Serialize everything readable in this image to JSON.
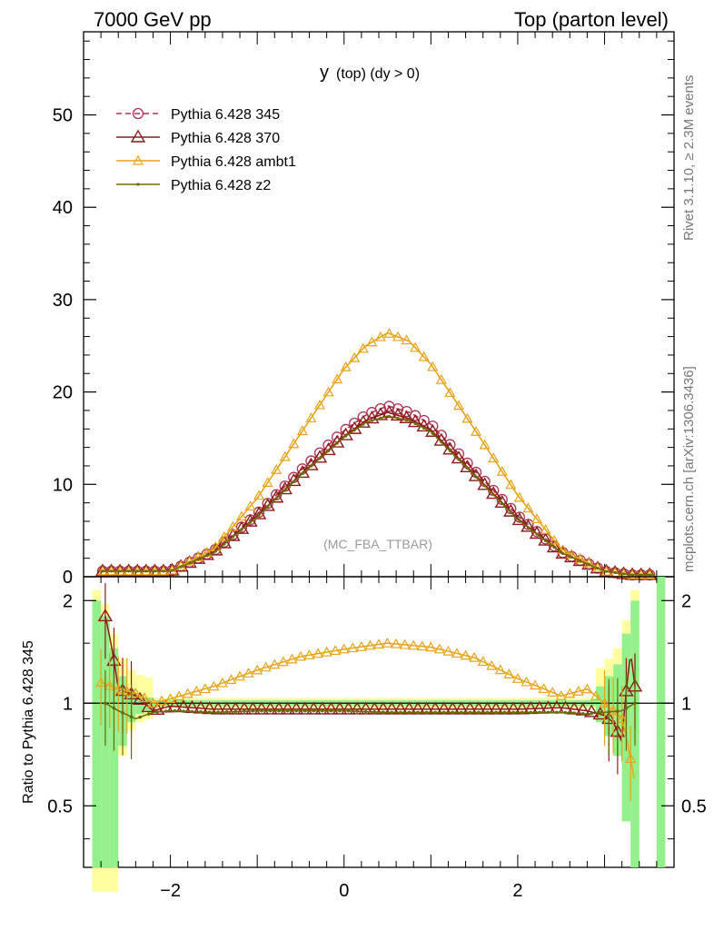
{
  "header": {
    "left": "7000 GeV pp",
    "right": "Top (parton level)"
  },
  "side_labels": {
    "rivet": "Rivet 3.1.10, ≥ 2.3M events",
    "mcplots": "mcplots.cern.ch [arXiv:1306.3436]"
  },
  "chart_data": [
    {
      "type": "line",
      "title_main": "y",
      "title_sub": "(top) (dy > 0)",
      "annotation": "(MC_FBA_TTBAR)",
      "xlim": [
        -3.0,
        3.8
      ],
      "ylim": [
        0,
        59
      ],
      "y_ticks": [
        0,
        10,
        20,
        30,
        40,
        50
      ],
      "x_ticks": [
        -2,
        0,
        2
      ],
      "legend_position": "top-left",
      "series": [
        {
          "name": "Pythia 6.428 345",
          "color": "#b03050",
          "dash": true,
          "marker": "circle",
          "x": [
            -2.0,
            -1.5,
            -1.0,
            -0.5,
            0.0,
            0.25,
            0.5,
            0.75,
            1.0,
            1.5,
            2.0,
            2.5,
            3.0,
            3.3
          ],
          "y": [
            0.6,
            2.8,
            6.8,
            11.5,
            15.8,
            17.5,
            18.5,
            17.8,
            16.5,
            11.5,
            6.6,
            2.7,
            0.6,
            0.2
          ]
        },
        {
          "name": "Pythia 6.428 370",
          "color": "#8b1a1a",
          "dash": false,
          "marker": "triangle-large",
          "x": [
            -2.0,
            -1.5,
            -1.0,
            -0.5,
            0.0,
            0.25,
            0.5,
            0.75,
            1.0,
            1.5,
            2.0,
            2.5,
            3.0,
            3.3
          ],
          "y": [
            0.6,
            2.7,
            6.6,
            11.1,
            15.2,
            16.9,
            17.8,
            17.1,
            15.9,
            11.1,
            6.3,
            2.6,
            0.6,
            0.2
          ]
        },
        {
          "name": "Pythia 6.428 ambt1",
          "color": "#e8a317",
          "dash": false,
          "marker": "triangle",
          "x": [
            -2.0,
            -1.5,
            -1.0,
            -0.5,
            0.0,
            0.25,
            0.5,
            0.75,
            1.0,
            1.5,
            2.0,
            2.5,
            3.0,
            3.3
          ],
          "y": [
            0.6,
            3.0,
            8.5,
            15.5,
            22.5,
            25.0,
            26.4,
            25.5,
            23.0,
            16.0,
            8.8,
            3.0,
            0.6,
            0.2
          ]
        },
        {
          "name": "Pythia 6.428 z2",
          "color": "#6b6b00",
          "dash": false,
          "marker": "dot",
          "x": [
            -2.0,
            -1.5,
            -1.0,
            -0.5,
            0.0,
            0.25,
            0.5,
            0.75,
            1.0,
            1.5,
            2.0,
            2.5,
            3.0,
            3.3
          ],
          "y": [
            0.6,
            2.6,
            6.5,
            11.0,
            15.1,
            16.7,
            17.4,
            16.9,
            15.7,
            11.0,
            6.2,
            2.6,
            0.6,
            0.2
          ]
        }
      ]
    },
    {
      "type": "line",
      "ylabel": "Ratio to Pythia 6.428 345",
      "xlim": [
        -3.0,
        3.8
      ],
      "ylim": [
        0.33,
        2.35
      ],
      "log_y": true,
      "y_ticks": [
        0.5,
        1,
        2
      ],
      "x_ticks": [
        -2,
        0,
        2
      ],
      "series": [
        {
          "name": "Pythia 6.428 370",
          "color": "#8b1a1a",
          "x": [
            -2.75,
            -2.6,
            -2.4,
            -2.2,
            -2.0,
            -1.5,
            -1.0,
            -0.5,
            0.0,
            0.5,
            1.0,
            1.5,
            2.0,
            2.5,
            2.8,
            3.0,
            3.1,
            3.2,
            3.3,
            3.35
          ],
          "y": [
            1.8,
            1.1,
            1.05,
            0.95,
            0.98,
            0.96,
            0.96,
            0.96,
            0.96,
            0.96,
            0.96,
            0.96,
            0.96,
            0.97,
            0.95,
            0.92,
            0.88,
            0.77,
            1.4,
            1.12
          ]
        },
        {
          "name": "Pythia 6.428 ambt1",
          "color": "#e8a317",
          "x": [
            -2.8,
            -2.6,
            -2.4,
            -2.2,
            -2.0,
            -1.5,
            -1.0,
            -0.5,
            0.0,
            0.5,
            1.0,
            1.5,
            2.0,
            2.5,
            2.8,
            3.0,
            3.2,
            3.35
          ],
          "y": [
            1.15,
            1.1,
            1.07,
            1.0,
            1.03,
            1.12,
            1.25,
            1.37,
            1.44,
            1.5,
            1.46,
            1.36,
            1.18,
            1.05,
            1.1,
            1.0,
            0.9,
            0.58
          ]
        },
        {
          "name": "Pythia 6.428 z2",
          "color": "#6b6b00",
          "x": [
            -2.75,
            -2.6,
            -2.4,
            -2.2,
            -2.0,
            -1.5,
            -1.0,
            -0.5,
            0.0,
            0.5,
            1.0,
            1.5,
            2.0,
            2.5,
            2.8,
            3.0,
            3.2,
            3.35
          ],
          "y": [
            1.0,
            0.95,
            0.9,
            0.94,
            0.95,
            0.94,
            0.95,
            0.95,
            0.95,
            0.94,
            0.94,
            0.94,
            0.94,
            0.94,
            0.93,
            0.94,
            0.95,
            1.0
          ]
        }
      ],
      "reference_line": 1
    }
  ]
}
